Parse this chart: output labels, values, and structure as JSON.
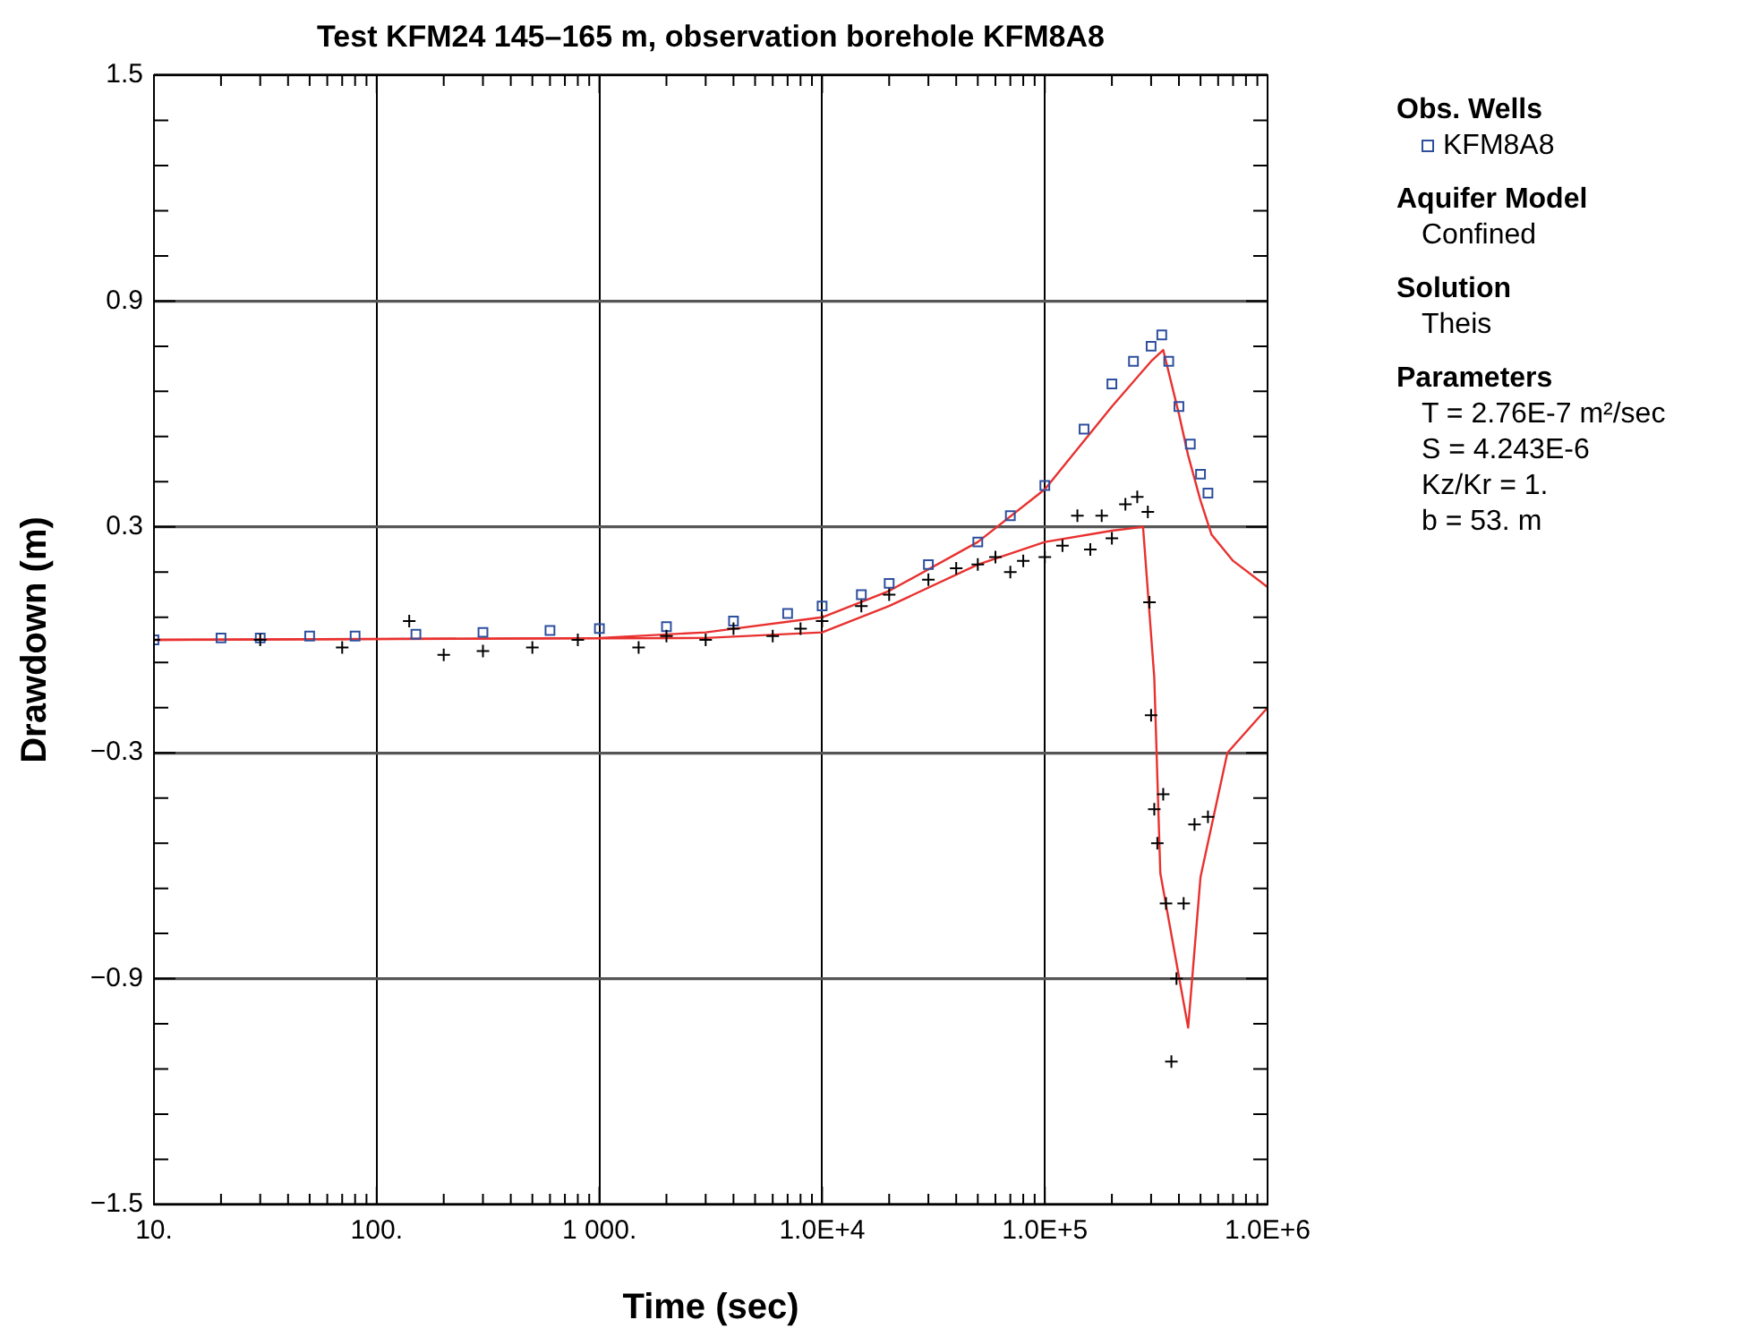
{
  "chart_data": {
    "type": "scatter",
    "title": "Test KFM24 145–165 m, observation borehole KFM8A8",
    "xlabel": "Time (sec)",
    "ylabel": "Drawdown (m)",
    "legend_title": "Obs. Wells",
    "legend": "right",
    "log": "x",
    "grid": true,
    "xlim": [
      10,
      1000000
    ],
    "ylim": [
      -1.5,
      1.5
    ],
    "xticks": [
      {
        "value": 10,
        "label": "10."
      },
      {
        "value": 20,
        "label": null
      },
      {
        "value": 30,
        "label": null
      },
      {
        "value": 40,
        "label": null
      },
      {
        "value": 50,
        "label": null
      },
      {
        "value": 60,
        "label": null
      },
      {
        "value": 70,
        "label": null
      },
      {
        "value": 80,
        "label": null
      },
      {
        "value": 90,
        "label": null
      },
      {
        "value": 100,
        "label": "100."
      },
      {
        "value": 200,
        "label": null
      },
      {
        "value": 300,
        "label": null
      },
      {
        "value": 400,
        "label": null
      },
      {
        "value": 500,
        "label": null
      },
      {
        "value": 600,
        "label": null
      },
      {
        "value": 700,
        "label": null
      },
      {
        "value": 800,
        "label": null
      },
      {
        "value": 900,
        "label": null
      },
      {
        "value": 1000,
        "label": "1 000."
      },
      {
        "value": 2000,
        "label": null
      },
      {
        "value": 3000,
        "label": null
      },
      {
        "value": 4000,
        "label": null
      },
      {
        "value": 5000,
        "label": null
      },
      {
        "value": 6000,
        "label": null
      },
      {
        "value": 7000,
        "label": null
      },
      {
        "value": 8000,
        "label": null
      },
      {
        "value": 9000,
        "label": null
      },
      {
        "value": 10000,
        "label": "1.0E+4"
      },
      {
        "value": 20000,
        "label": null
      },
      {
        "value": 30000,
        "label": null
      },
      {
        "value": 40000,
        "label": null
      },
      {
        "value": 50000,
        "label": null
      },
      {
        "value": 60000,
        "label": null
      },
      {
        "value": 70000,
        "label": null
      },
      {
        "value": 80000,
        "label": null
      },
      {
        "value": 90000,
        "label": null
      },
      {
        "value": 100000,
        "label": "1.0E+5"
      },
      {
        "value": 200000,
        "label": null
      },
      {
        "value": 300000,
        "label": null
      },
      {
        "value": 400000,
        "label": null
      },
      {
        "value": 500000,
        "label": null
      },
      {
        "value": 600000,
        "label": null
      },
      {
        "value": 700000,
        "label": null
      },
      {
        "value": 800000,
        "label": null
      },
      {
        "value": 900000,
        "label": null
      },
      {
        "value": 1000000,
        "label": "1.0E+6"
      }
    ],
    "yticks": [
      {
        "value": -1.5,
        "label": "−1.5"
      },
      {
        "value": -1.38,
        "label": null
      },
      {
        "value": -1.26,
        "label": null
      },
      {
        "value": -1.14,
        "label": null
      },
      {
        "value": -1.02,
        "label": null
      },
      {
        "value": -0.9,
        "label": "−0.9"
      },
      {
        "value": -0.78,
        "label": null
      },
      {
        "value": -0.66,
        "label": null
      },
      {
        "value": -0.54,
        "label": null
      },
      {
        "value": -0.42,
        "label": null
      },
      {
        "value": -0.3,
        "label": "−0.3"
      },
      {
        "value": -0.18,
        "label": null
      },
      {
        "value": -0.06,
        "label": null
      },
      {
        "value": 0.06,
        "label": null
      },
      {
        "value": 0.18,
        "label": null
      },
      0.3,
      {
        "value": 0.42,
        "label": null
      },
      {
        "value": 0.54,
        "label": null
      },
      {
        "value": 0.66,
        "label": null
      },
      {
        "value": 0.78,
        "label": null
      },
      0.9,
      {
        "value": 1.02,
        "label": null
      },
      {
        "value": 1.14,
        "label": null
      },
      {
        "value": 1.26,
        "label": null
      },
      {
        "value": 1.38,
        "label": null
      },
      1.5
    ],
    "series": [
      {
        "marker": "cross",
        "color": "#000000",
        "x": [
          10,
          30,
          70,
          140,
          200,
          300,
          500,
          800,
          1500,
          2000,
          3000,
          4000,
          6000,
          8000,
          10000,
          15000,
          20000,
          30000,
          40000,
          50000,
          60000,
          70000,
          80000,
          100000,
          120000,
          140000,
          160000,
          180000,
          200000,
          230000,
          260000,
          290000,
          295000,
          300000,
          310000,
          320000,
          340000,
          350000,
          370000,
          390000,
          420000,
          470000,
          540000
        ],
        "values": [
          0,
          0,
          -0.02,
          0.05,
          -0.04,
          -0.03,
          -0.02,
          0,
          -0.02,
          0.01,
          0,
          0.03,
          0.01,
          0.03,
          0.05,
          0.09,
          0.12,
          0.16,
          0.19,
          0.2,
          0.22,
          0.18,
          0.21,
          0.22,
          0.25,
          0.33,
          0.24,
          0.33,
          0.27,
          0.36,
          0.38,
          0.34,
          0.1,
          -0.2,
          -0.45,
          -0.54,
          -0.41,
          -0.7,
          -1.12,
          -0.9,
          -0.7,
          -0.49,
          -0.47
        ]
      },
      {
        "name": "KFM8A8",
        "marker": "square",
        "color": "#2e4f9e",
        "x": [
          10,
          20,
          30,
          50,
          80,
          150,
          300,
          600,
          1000,
          2000,
          4000,
          7000,
          10000,
          15000,
          20000,
          30000,
          50000,
          70000,
          100000,
          150000,
          200000,
          250000,
          300000,
          335000,
          360000,
          400000,
          450000,
          500000,
          540000
        ],
        "values": [
          0,
          0.005,
          0.005,
          0.01,
          0.01,
          0.015,
          0.02,
          0.025,
          0.03,
          0.035,
          0.05,
          0.07,
          0.09,
          0.12,
          0.15,
          0.2,
          0.26,
          0.33,
          0.41,
          0.56,
          0.68,
          0.74,
          0.78,
          0.81,
          0.74,
          0.62,
          0.52,
          0.44,
          0.39
        ]
      },
      {
        "type": "line",
        "marker": "none",
        "color": "#e8312f",
        "x": [
          10,
          1000,
          3000,
          10000,
          20000,
          50000,
          100000,
          200000,
          300000,
          340000,
          400000,
          440000,
          500000,
          560000,
          700000,
          1000000
        ],
        "values": [
          0,
          0.005,
          0.02,
          0.06,
          0.13,
          0.26,
          0.4,
          0.62,
          0.74,
          0.77,
          0.6,
          0.49,
          0.37,
          0.28,
          0.21,
          0.14
        ]
      },
      {
        "type": "line",
        "marker": "none",
        "color": "#e8312f",
        "x": [
          10,
          3000,
          10000,
          20000,
          50000,
          100000,
          200000,
          276000,
          310000,
          330000,
          440000,
          500000,
          660000,
          1000000
        ],
        "values": [
          0,
          0.005,
          0.02,
          0.09,
          0.2,
          0.26,
          0.29,
          0.3,
          -0.1,
          -0.62,
          -1.03,
          -0.63,
          -0.3,
          -0.18
        ]
      }
    ],
    "annotations": [
      "Aquifer Model",
      "Confined",
      "Solution",
      "Theis",
      "Parameters",
      "T = 2.76E-7 m²/sec",
      "S = 4.243E-6",
      "Kz/Kr = 1.",
      "b = 53. m"
    ]
  }
}
